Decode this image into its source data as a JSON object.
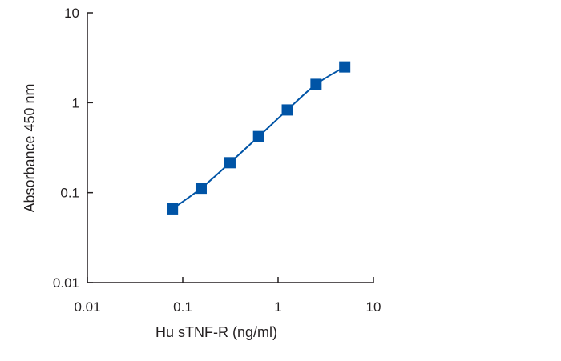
{
  "chart_data": {
    "type": "line",
    "title": "",
    "xlabel": "Hu sTNF-R (ng/ml)",
    "ylabel": "Absorbance 450 nm",
    "xscale": "log",
    "yscale": "log",
    "xlim": [
      0.01,
      10
    ],
    "ylim": [
      0.01,
      10
    ],
    "xticks": [
      {
        "value": 0.01,
        "label": "0.01"
      },
      {
        "value": 0.1,
        "label": "0.1"
      },
      {
        "value": 1,
        "label": "1"
      },
      {
        "value": 10,
        "label": "10"
      }
    ],
    "yticks": [
      {
        "value": 0.01,
        "label": "0.01"
      },
      {
        "value": 0.1,
        "label": "0.1"
      },
      {
        "value": 1,
        "label": "1"
      },
      {
        "value": 10,
        "label": "10"
      }
    ],
    "grid": false,
    "legend": "none",
    "series": [
      {
        "marker": "square",
        "color": "#0054a6",
        "x": [
          0.078,
          0.156,
          0.313,
          0.625,
          1.25,
          2.5,
          5
        ],
        "y": [
          0.066,
          0.112,
          0.215,
          0.42,
          0.83,
          1.6,
          2.5
        ]
      }
    ]
  }
}
